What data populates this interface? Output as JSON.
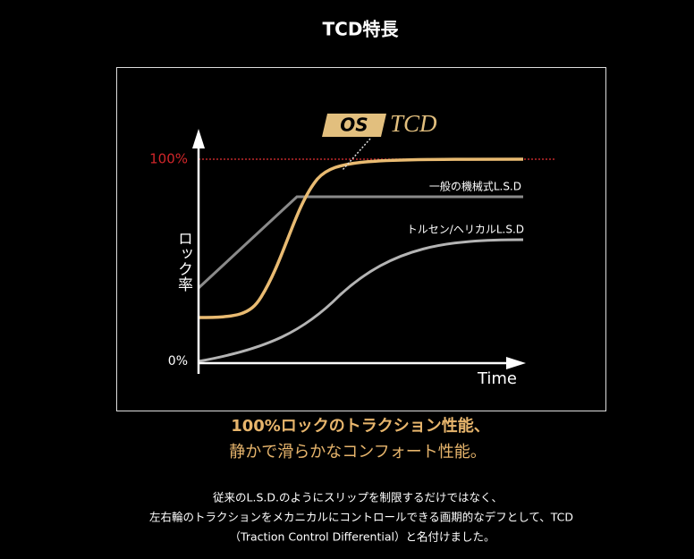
{
  "header": {
    "title": "TCD特長"
  },
  "diagram": {
    "y_axis_label": "ロック率",
    "y_max_label": "100%",
    "y_min_label": "0%",
    "x_axis_label": "Time",
    "logo": {
      "mark": "OS",
      "name": "TCD"
    },
    "curves": [
      {
        "label": "一般の機械式L.S.D"
      },
      {
        "label": "トルセン/ヘリカルL.S.D"
      }
    ]
  },
  "headline": {
    "lines": [
      "100%ロックのトラクション性能、",
      "静かで滑らかなコンフォート性能。"
    ]
  },
  "body": {
    "lines": [
      "従来のL.S.D.のようにスリップを制限するだけではなく、",
      "左右輪のトラクションをメカニカルにコントロールできる画期的なデフとして、TCD",
      "（Traction Control Differential）と名付けました。"
    ]
  }
}
